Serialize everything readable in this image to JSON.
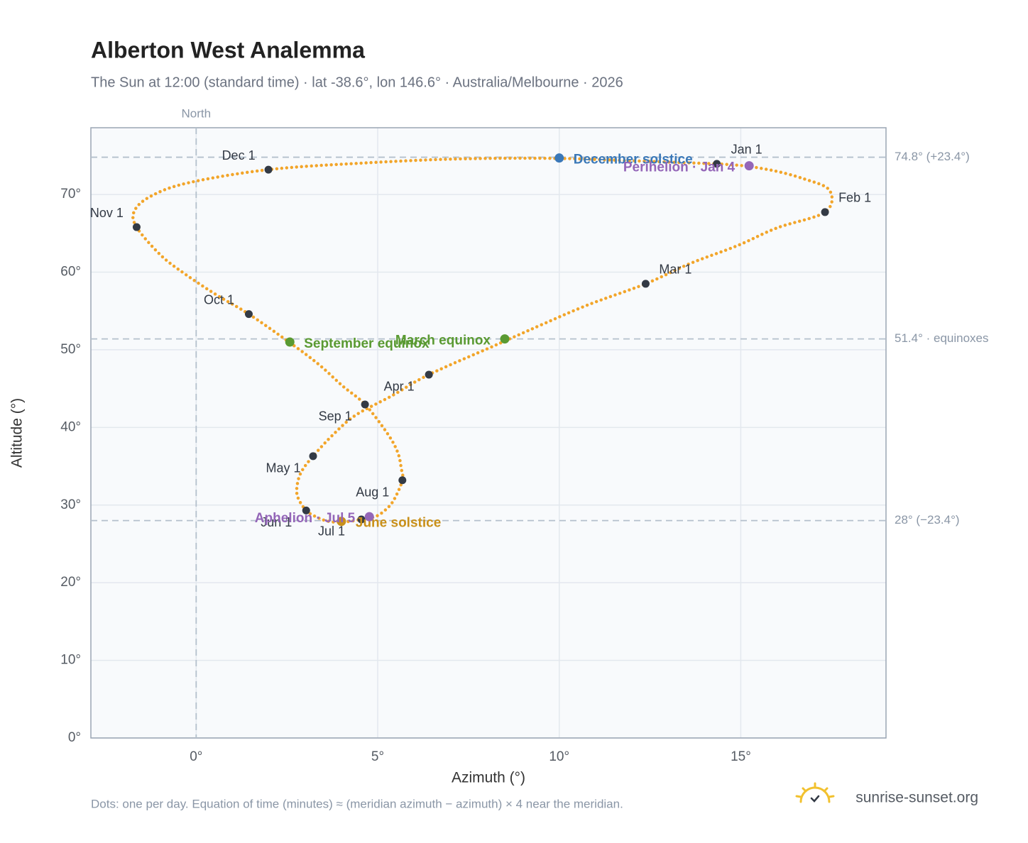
{
  "chart_data": {
    "type": "scatter",
    "title": "Alberton West Analemma",
    "subtitle": "The Sun at 12:00 (standard time) · lat -38.6°, lon 146.6° · Australia/Melbourne · 2026",
    "xlabel": "Azimuth (°)",
    "ylabel": "Altitude (°)",
    "xlim": [
      -2.9,
      19
    ],
    "ylim": [
      0,
      78.6
    ],
    "xticks": [
      {
        "value": 0,
        "label": "0°"
      },
      {
        "value": 5,
        "label": "5°"
      },
      {
        "value": 10,
        "label": "10°"
      },
      {
        "value": 15,
        "label": "15°"
      }
    ],
    "yticks": [
      {
        "value": 0,
        "label": "0°"
      },
      {
        "value": 10,
        "label": "10°"
      },
      {
        "value": 20,
        "label": "20°"
      },
      {
        "value": 30,
        "label": "30°"
      },
      {
        "value": 40,
        "label": "40°"
      },
      {
        "value": 50,
        "label": "50°"
      },
      {
        "value": 60,
        "label": "60°"
      },
      {
        "value": 70,
        "label": "70°"
      }
    ],
    "grid": true,
    "color": "#f2a52a",
    "x": [
      14.34,
      15.7,
      16.75,
      17.45,
      17.32,
      16.0,
      14.9,
      13.6,
      12.38,
      10.8,
      9.5,
      8.2,
      6.41,
      5.4,
      4.4,
      3.8,
      3.22,
      2.9,
      2.78,
      2.8,
      3.03,
      3.34,
      3.65,
      4.04,
      4.55,
      4.93,
      5.22,
      5.45,
      5.68,
      5.65,
      5.55,
      5.27,
      4.65,
      4.03,
      3.38,
      2.6,
      1.45,
      0.55,
      -0.29,
      -0.98,
      -1.64,
      -1.7,
      -1.24,
      -0.22,
      1.99,
      4.6,
      7.4,
      10.5
    ],
    "y": [
      73.95,
      73.25,
      72.0,
      70.5,
      67.73,
      65.7,
      63.4,
      61.1,
      58.5,
      55.8,
      53.2,
      50.5,
      46.8,
      44.1,
      41.6,
      39.2,
      36.3,
      34.3,
      32.5,
      31.0,
      29.3,
      28.4,
      27.9,
      27.8,
      28.15,
      28.5,
      29.4,
      30.7,
      33.2,
      34.7,
      36.8,
      39.2,
      42.96,
      45.35,
      48.1,
      50.85,
      54.6,
      57.1,
      59.7,
      62.2,
      65.8,
      67.9,
      69.8,
      71.5,
      73.2,
      74.05,
      74.6,
      74.6
    ],
    "month_markers": {
      "color": "#333a45",
      "labels": [
        "Jan 1",
        "Feb 1",
        "Mar 1",
        "Apr 1",
        "May 1",
        "Jun 1",
        "Jul 1",
        "Aug 1",
        "Sep 1",
        "Oct 1",
        "Nov 1",
        "Dec 1"
      ],
      "x": [
        14.34,
        17.32,
        12.38,
        6.41,
        3.22,
        3.03,
        4.55,
        5.68,
        4.65,
        1.45,
        -1.64,
        1.99
      ],
      "y": [
        73.95,
        67.73,
        58.5,
        46.8,
        36.3,
        29.3,
        28.15,
        33.2,
        42.96,
        54.6,
        65.8,
        73.2
      ]
    },
    "events": [
      {
        "label": "December solstice",
        "x": 10.0,
        "y": 74.7,
        "color": "#3a78b8"
      },
      {
        "label": "Perihelion · Jan 4",
        "x": 15.23,
        "y": 73.7,
        "color": "#9466b8"
      },
      {
        "label": "March equinox",
        "x": 8.5,
        "y": 51.4,
        "color": "#5a9a32"
      },
      {
        "label": "September equinox",
        "x": 2.58,
        "y": 51.0,
        "color": "#5a9a32"
      },
      {
        "label": "June solstice",
        "x": 4.0,
        "y": 27.9,
        "color": "#c9901a"
      },
      {
        "label": "Aphelion · Jul 5",
        "x": 4.77,
        "y": 28.5,
        "color": "#9466b8"
      }
    ],
    "hlines": [
      {
        "value": 74.8,
        "label": "74.8° (+23.4°)"
      },
      {
        "value": 51.4,
        "label": "51.4° · equinoxes"
      },
      {
        "value": 28,
        "label": "28° (−23.4°)"
      }
    ],
    "vlines": [
      {
        "value": 0,
        "label": "North"
      }
    ],
    "note": "Dots: one per day. Equation of time (minutes) ≈ (meridian azimuth − azimuth) × 4 near the meridian.",
    "brand": "sunrise-sunset.org"
  }
}
